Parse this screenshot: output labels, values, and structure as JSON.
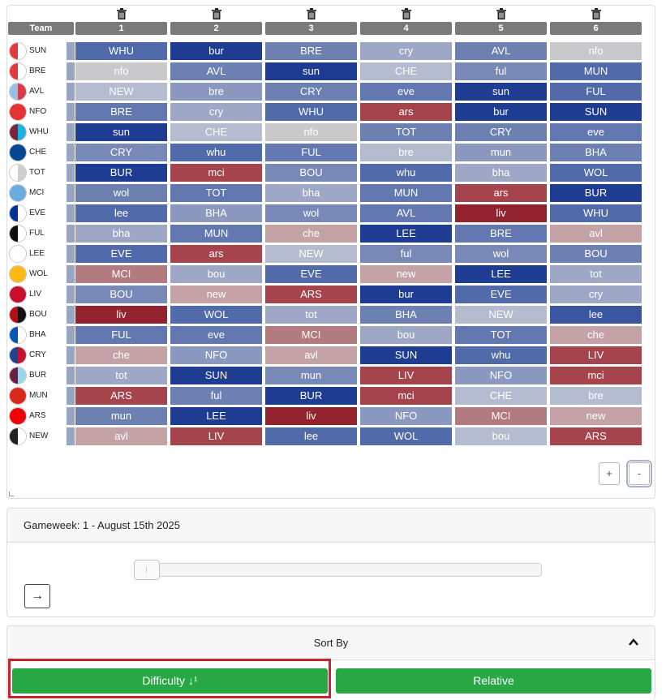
{
  "fixture_grid": {
    "team_header": "Team",
    "columns": [
      "1",
      "2",
      "3",
      "4",
      "5",
      "6"
    ],
    "rows": [
      {
        "team": "SUN",
        "badge": [
          "#e03a3e",
          "#ffffff"
        ],
        "cells": [
          {
            "text": "WHU",
            "color": "#506aaa"
          },
          {
            "text": "bur",
            "color": "#1f3c93"
          },
          {
            "text": "BRE",
            "color": "#6d80b2"
          },
          {
            "text": "cry",
            "color": "#9ea8c6"
          },
          {
            "text": "AVL",
            "color": "#6d80b2"
          },
          {
            "text": "nfo",
            "color": "#c9c9cb"
          }
        ]
      },
      {
        "team": "BRE",
        "badge": [
          "#e03a3e",
          "#ffffff"
        ],
        "cells": [
          {
            "text": "nfo",
            "color": "#c9c9cb"
          },
          {
            "text": "AVL",
            "color": "#6d80b2"
          },
          {
            "text": "sun",
            "color": "#1f3c93"
          },
          {
            "text": "CHE",
            "color": "#b5bccf"
          },
          {
            "text": "ful",
            "color": "#7889b8"
          },
          {
            "text": "MUN",
            "color": "#506aaa"
          }
        ]
      },
      {
        "team": "AVL",
        "badge": [
          "#95bfe5",
          "#d83b4a"
        ],
        "cells": [
          {
            "text": "NEW",
            "color": "#b5bccf"
          },
          {
            "text": "bre",
            "color": "#8b98c0"
          },
          {
            "text": "CRY",
            "color": "#6d80b2"
          },
          {
            "text": "eve",
            "color": "#6378b0"
          },
          {
            "text": "sun",
            "color": "#1f3c93"
          },
          {
            "text": "FUL",
            "color": "#506aaa"
          }
        ]
      },
      {
        "team": "NFO",
        "badge": [
          "#e53233",
          "#e53233"
        ],
        "cells": [
          {
            "text": "BRE",
            "color": "#6378b0"
          },
          {
            "text": "cry",
            "color": "#9ea8c6"
          },
          {
            "text": "WHU",
            "color": "#506aaa"
          },
          {
            "text": "ars",
            "color": "#a6444d"
          },
          {
            "text": "bur",
            "color": "#1f3c93"
          },
          {
            "text": "SUN",
            "color": "#1f3c93"
          }
        ]
      },
      {
        "team": "WHU",
        "badge": [
          "#7a263a",
          "#1bb1e7"
        ],
        "cells": [
          {
            "text": "sun",
            "color": "#1f3c93"
          },
          {
            "text": "CHE",
            "color": "#b5bccf"
          },
          {
            "text": "nfo",
            "color": "#c9c9cb"
          },
          {
            "text": "TOT",
            "color": "#6d80b2"
          },
          {
            "text": "CRY",
            "color": "#6d80b2"
          },
          {
            "text": "eve",
            "color": "#6378b0"
          }
        ]
      },
      {
        "team": "CHE",
        "badge": [
          "#034694",
          "#034694"
        ],
        "cells": [
          {
            "text": "CRY",
            "color": "#7889b8"
          },
          {
            "text": "whu",
            "color": "#506aaa"
          },
          {
            "text": "FUL",
            "color": "#6378b0"
          },
          {
            "text": "bre",
            "color": "#b5bccf"
          },
          {
            "text": "mun",
            "color": "#8b98c0"
          },
          {
            "text": "BHA",
            "color": "#6d80b2"
          }
        ]
      },
      {
        "team": "TOT",
        "badge": [
          "#ffffff",
          "#cfcfcf"
        ],
        "cells": [
          {
            "text": "BUR",
            "color": "#1f3c93"
          },
          {
            "text": "mci",
            "color": "#a6444d"
          },
          {
            "text": "BOU",
            "color": "#7889b8"
          },
          {
            "text": "whu",
            "color": "#506aaa"
          },
          {
            "text": "bha",
            "color": "#9ea8c6"
          },
          {
            "text": "WOL",
            "color": "#506aaa"
          }
        ]
      },
      {
        "team": "MCI",
        "badge": [
          "#6cabdd",
          "#6cabdd"
        ],
        "cells": [
          {
            "text": "wol",
            "color": "#6d80b2"
          },
          {
            "text": "TOT",
            "color": "#6378b0"
          },
          {
            "text": "bha",
            "color": "#9ea8c6"
          },
          {
            "text": "MUN",
            "color": "#6378b0"
          },
          {
            "text": "ars",
            "color": "#a6444d"
          },
          {
            "text": "BUR",
            "color": "#1f3c93"
          }
        ]
      },
      {
        "team": "EVE",
        "badge": [
          "#003399",
          "#ffffff"
        ],
        "cells": [
          {
            "text": "lee",
            "color": "#506aaa"
          },
          {
            "text": "BHA",
            "color": "#8b98c0"
          },
          {
            "text": "wol",
            "color": "#7889b8"
          },
          {
            "text": "AVL",
            "color": "#6378b0"
          },
          {
            "text": "liv",
            "color": "#93222f"
          },
          {
            "text": "WHU",
            "color": "#506aaa"
          }
        ]
      },
      {
        "team": "FUL",
        "badge": [
          "#111111",
          "#ffffff"
        ],
        "cells": [
          {
            "text": "bha",
            "color": "#9ea8c6"
          },
          {
            "text": "MUN",
            "color": "#6378b0"
          },
          {
            "text": "che",
            "color": "#c4a2a6"
          },
          {
            "text": "LEE",
            "color": "#1f3c93"
          },
          {
            "text": "BRE",
            "color": "#6378b0"
          },
          {
            "text": "avl",
            "color": "#c4a2a6"
          }
        ]
      },
      {
        "team": "LEE",
        "badge": [
          "#ffffff",
          "#ffffff"
        ],
        "cells": [
          {
            "text": "EVE",
            "color": "#506aaa"
          },
          {
            "text": "ars",
            "color": "#a6444d"
          },
          {
            "text": "NEW",
            "color": "#b5bccf"
          },
          {
            "text": "ful",
            "color": "#7889b8"
          },
          {
            "text": "wol",
            "color": "#7889b8"
          },
          {
            "text": "BOU",
            "color": "#6d80b2"
          }
        ]
      },
      {
        "team": "WOL",
        "badge": [
          "#fdb913",
          "#fdb913"
        ],
        "cells": [
          {
            "text": "MCI",
            "color": "#b37a80"
          },
          {
            "text": "bou",
            "color": "#9ea8c6"
          },
          {
            "text": "EVE",
            "color": "#506aaa"
          },
          {
            "text": "new",
            "color": "#c4a2a6"
          },
          {
            "text": "LEE",
            "color": "#1f3c93"
          },
          {
            "text": "tot",
            "color": "#9ea8c6"
          }
        ]
      },
      {
        "team": "LIV",
        "badge": [
          "#c8102e",
          "#c8102e"
        ],
        "cells": [
          {
            "text": "BOU",
            "color": "#7889b8"
          },
          {
            "text": "new",
            "color": "#c4a2a6"
          },
          {
            "text": "ARS",
            "color": "#a6444d"
          },
          {
            "text": "bur",
            "color": "#1f3c93"
          },
          {
            "text": "EVE",
            "color": "#506aaa"
          },
          {
            "text": "cry",
            "color": "#9ea8c6"
          }
        ]
      },
      {
        "team": "BOU",
        "badge": [
          "#b50e12",
          "#111111"
        ],
        "cells": [
          {
            "text": "liv",
            "color": "#93222f"
          },
          {
            "text": "WOL",
            "color": "#506aaa"
          },
          {
            "text": "tot",
            "color": "#9ea8c6"
          },
          {
            "text": "BHA",
            "color": "#6d80b2"
          },
          {
            "text": "NEW",
            "color": "#b5bccf"
          },
          {
            "text": "lee",
            "color": "#3a56a0"
          }
        ]
      },
      {
        "team": "BHA",
        "badge": [
          "#0057b8",
          "#ffffff"
        ],
        "cells": [
          {
            "text": "FUL",
            "color": "#6378b0"
          },
          {
            "text": "eve",
            "color": "#6378b0"
          },
          {
            "text": "MCI",
            "color": "#b37a80"
          },
          {
            "text": "bou",
            "color": "#9ea8c6"
          },
          {
            "text": "TOT",
            "color": "#6378b0"
          },
          {
            "text": "che",
            "color": "#c4a2a6"
          }
        ]
      },
      {
        "team": "CRY",
        "badge": [
          "#1b458f",
          "#c4122e"
        ],
        "cells": [
          {
            "text": "che",
            "color": "#c4a2a6"
          },
          {
            "text": "NFO",
            "color": "#8b98c0"
          },
          {
            "text": "avl",
            "color": "#c4a2a6"
          },
          {
            "text": "SUN",
            "color": "#1f3c93"
          },
          {
            "text": "whu",
            "color": "#506aaa"
          },
          {
            "text": "LIV",
            "color": "#a6444d"
          }
        ]
      },
      {
        "team": "BUR",
        "badge": [
          "#6c1d45",
          "#99d6ea"
        ],
        "cells": [
          {
            "text": "tot",
            "color": "#9ea8c6"
          },
          {
            "text": "SUN",
            "color": "#1f3c93"
          },
          {
            "text": "mun",
            "color": "#7889b8"
          },
          {
            "text": "LIV",
            "color": "#a6444d"
          },
          {
            "text": "NFO",
            "color": "#8b98c0"
          },
          {
            "text": "mci",
            "color": "#a6444d"
          }
        ]
      },
      {
        "team": "MUN",
        "badge": [
          "#da291c",
          "#da291c"
        ],
        "cells": [
          {
            "text": "ARS",
            "color": "#a6444d"
          },
          {
            "text": "ful",
            "color": "#6d80b2"
          },
          {
            "text": "BUR",
            "color": "#1f3c93"
          },
          {
            "text": "mci",
            "color": "#a6444d"
          },
          {
            "text": "CHE",
            "color": "#b5bccf"
          },
          {
            "text": "bre",
            "color": "#b5bccf"
          }
        ]
      },
      {
        "team": "ARS",
        "badge": [
          "#ef0107",
          "#ef0107"
        ],
        "cells": [
          {
            "text": "mun",
            "color": "#6d80b2"
          },
          {
            "text": "LEE",
            "color": "#1f3c93"
          },
          {
            "text": "liv",
            "color": "#93222f"
          },
          {
            "text": "NFO",
            "color": "#8b98c0"
          },
          {
            "text": "MCI",
            "color": "#b37a80"
          },
          {
            "text": "new",
            "color": "#c4a2a6"
          }
        ]
      },
      {
        "team": "NEW",
        "badge": [
          "#241f20",
          "#ffffff"
        ],
        "cells": [
          {
            "text": "avl",
            "color": "#c4a2a6"
          },
          {
            "text": "LIV",
            "color": "#a6444d"
          },
          {
            "text": "lee",
            "color": "#506aaa"
          },
          {
            "text": "WOL",
            "color": "#506aaa"
          },
          {
            "text": "bou",
            "color": "#b5bccf"
          },
          {
            "text": "ARS",
            "color": "#a6444d"
          }
        ]
      }
    ],
    "zoom_in_label": "+",
    "zoom_out_label": "-"
  },
  "gameweek": {
    "label": "Gameweek: 1 - August 15th 2025",
    "slider_value": 1,
    "next_label": "→"
  },
  "sort": {
    "title": "Sort By",
    "difficulty_label": "Difficulty ↓¹",
    "relative_label": "Relative"
  },
  "colors": {
    "button_green": "#28a745",
    "header_gray": "#7a7a7a",
    "highlight_red": "#d0202a"
  }
}
